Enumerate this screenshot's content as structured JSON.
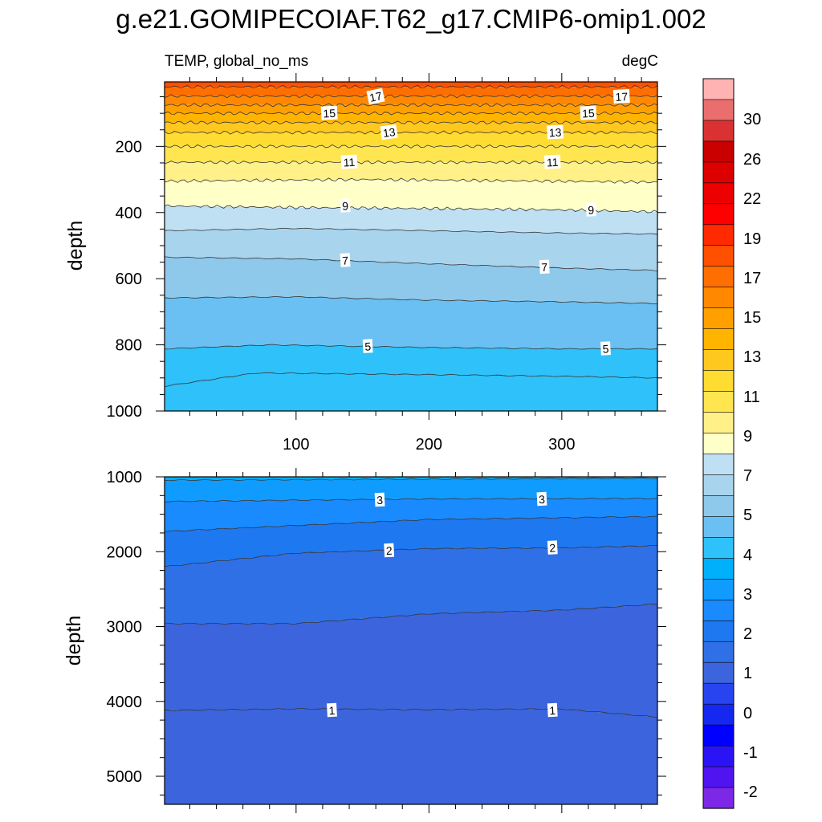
{
  "chart_data": {
    "title": "g.e21.GOMIPECOIAF.T62_g17.CMIP6-omip1.002",
    "variable_label": "TEMP, global_no_ms",
    "units_label": "degC",
    "type": "contour",
    "panels": [
      {
        "name": "upper",
        "ylabel": "depth",
        "xlim": [
          1,
          372
        ],
        "ylim": [
          1000,
          5
        ],
        "y_reversed": true,
        "x_ticks": [
          100,
          200,
          300
        ],
        "y_ticks": [
          200,
          400,
          600,
          800,
          1000
        ],
        "contour_levels": [
          5,
          6,
          7,
          8,
          9,
          10,
          11,
          12,
          13,
          14,
          15,
          16,
          17,
          18
        ],
        "contour_lines": [
          {
            "level": 18,
            "x": [
              1,
              372
            ],
            "depth": [
              20,
              20
            ]
          },
          {
            "level": 17,
            "x": [
              1,
              372
            ],
            "depth": [
              48,
              48
            ]
          },
          {
            "level": 16,
            "x": [
              1,
              372
            ],
            "depth": [
              75,
              75
            ]
          },
          {
            "level": 15,
            "x": [
              1,
              372
            ],
            "depth": [
              100,
              100
            ]
          },
          {
            "level": 14,
            "x": [
              1,
              372
            ],
            "depth": [
              128,
              128
            ]
          },
          {
            "level": 13,
            "x": [
              1,
              372
            ],
            "depth": [
              158,
              158
            ]
          },
          {
            "level": 12,
            "x": [
              1,
              372
            ],
            "depth": [
              200,
              200
            ]
          },
          {
            "level": 11,
            "x": [
              1,
              372
            ],
            "depth": [
              248,
              248
            ]
          },
          {
            "level": 10,
            "x": [
              1,
              150,
              372
            ],
            "depth": [
              305,
              300,
              308
            ]
          },
          {
            "level": 9,
            "x": [
              1,
              100,
              200,
              300,
              372
            ],
            "depth": [
              380,
              385,
              388,
              392,
              398
            ]
          },
          {
            "level": 8,
            "x": [
              1,
              100,
              200,
              300,
              372
            ],
            "depth": [
              455,
              448,
              455,
              462,
              465
            ]
          },
          {
            "level": 7,
            "x": [
              1,
              100,
              200,
              300,
              372
            ],
            "depth": [
              535,
              540,
              555,
              568,
              575
            ]
          },
          {
            "level": 6,
            "x": [
              1,
              100,
              200,
              300,
              372
            ],
            "depth": [
              658,
              655,
              665,
              670,
              675
            ]
          },
          {
            "level": 5,
            "x": [
              1,
              80,
              200,
              300,
              372
            ],
            "depth": [
              812,
              800,
              808,
              812,
              812
            ]
          },
          {
            "level": 4.5,
            "x": [
              1,
              70,
              200,
              300,
              372
            ],
            "depth": [
              925,
              885,
              890,
              895,
              900
            ]
          }
        ],
        "contour_labels": [
          {
            "text": "17",
            "x": 160,
            "depth": 50
          },
          {
            "text": "17",
            "x": 345,
            "depth": 50
          },
          {
            "text": "15",
            "x": 125,
            "depth": 100
          },
          {
            "text": "15",
            "x": 320,
            "depth": 100
          },
          {
            "text": "13",
            "x": 170,
            "depth": 158
          },
          {
            "text": "13",
            "x": 295,
            "depth": 158
          },
          {
            "text": "11",
            "x": 140,
            "depth": 248
          },
          {
            "text": "11",
            "x": 293,
            "depth": 248
          },
          {
            "text": "9",
            "x": 137,
            "depth": 380
          },
          {
            "text": "9",
            "x": 322,
            "depth": 392
          },
          {
            "text": "7",
            "x": 137,
            "depth": 545
          },
          {
            "text": "7",
            "x": 287,
            "depth": 565
          },
          {
            "text": "5",
            "x": 154,
            "depth": 805
          },
          {
            "text": "5",
            "x": 333,
            "depth": 812
          }
        ]
      },
      {
        "name": "lower",
        "ylabel": "depth",
        "xlim": [
          1,
          372
        ],
        "ylim": [
          5375,
          1000
        ],
        "y_reversed": true,
        "x_ticks": [
          100,
          200,
          300
        ],
        "y_ticks": [
          1000,
          2000,
          3000,
          4000,
          5000
        ],
        "contour_levels": [
          1,
          2,
          3
        ],
        "contour_lines": [
          {
            "level": 3.5,
            "x": [
              1,
              372
            ],
            "depth": [
              1045,
              1020
            ]
          },
          {
            "level": 3,
            "x": [
              1,
              200,
              372
            ],
            "depth": [
              1330,
              1295,
              1290
            ]
          },
          {
            "level": 2.5,
            "x": [
              1,
              200,
              372
            ],
            "depth": [
              1730,
              1570,
              1530
            ]
          },
          {
            "level": 2,
            "x": [
              1,
              100,
              200,
              300,
              372
            ],
            "depth": [
              2200,
              2020,
              1960,
              1950,
              1920
            ]
          },
          {
            "level": 1.5,
            "x": [
              1,
              100,
              200,
              300,
              372
            ],
            "depth": [
              2960,
              2960,
              2830,
              2780,
              2700
            ]
          },
          {
            "level": 1,
            "x": [
              1,
              100,
              200,
              300,
              372
            ],
            "depth": [
              4120,
              4100,
              4110,
              4100,
              4210
            ]
          }
        ],
        "contour_labels": [
          {
            "text": "3",
            "x": 163,
            "depth": 1310
          },
          {
            "text": "3",
            "x": 285,
            "depth": 1300
          },
          {
            "text": "2",
            "x": 170,
            "depth": 1985
          },
          {
            "text": "2",
            "x": 293,
            "depth": 1950
          },
          {
            "text": "1",
            "x": 127,
            "depth": 4120
          },
          {
            "text": "1",
            "x": 293,
            "depth": 4120
          }
        ]
      }
    ],
    "colorbar": {
      "labels": [
        "30",
        "26",
        "22",
        "19",
        "17",
        "15",
        "13",
        "11",
        "9",
        "7",
        "5",
        "4",
        "3",
        "2",
        "1",
        "0",
        "-1",
        "-2"
      ],
      "colors_top_to_bottom": [
        "#ffb3b3",
        "#ea6e6e",
        "#da3232",
        "#c80000",
        "#dc0000",
        "#ec0000",
        "#ff0000",
        "#ff2a00",
        "#ff5000",
        "#ff6e00",
        "#ff8800",
        "#ffa000",
        "#ffb400",
        "#ffc81e",
        "#ffdc32",
        "#ffe650",
        "#fff088",
        "#ffffc8",
        "#bee0f2",
        "#a8d4ee",
        "#8ec8ea",
        "#6ac0f2",
        "#2ec1fa",
        "#00b0fa",
        "#109cff",
        "#1a8aff",
        "#1e78f0",
        "#3070e6",
        "#3c64dc",
        "#2844f0",
        "#1428f0",
        "#0000ff",
        "#2a14f5",
        "#5014f0",
        "#7d28e6"
      ]
    },
    "colors": {
      "upper_bands_top_to_bottom": [
        "#ff5000",
        "#ff6e00",
        "#ff8800",
        "#ffa000",
        "#ffb400",
        "#ffc81e",
        "#ffdc32",
        "#ffe650",
        "#fff088",
        "#ffffc8",
        "#bee0f2",
        "#a8d4ee",
        "#8ec8ea",
        "#6ac0f2",
        "#2ec1fa"
      ],
      "lower_bands_top_to_bottom": [
        "#00b0fa",
        "#109cff",
        "#1a8aff",
        "#1e78f0",
        "#3070e6",
        "#3c64dc"
      ]
    }
  }
}
